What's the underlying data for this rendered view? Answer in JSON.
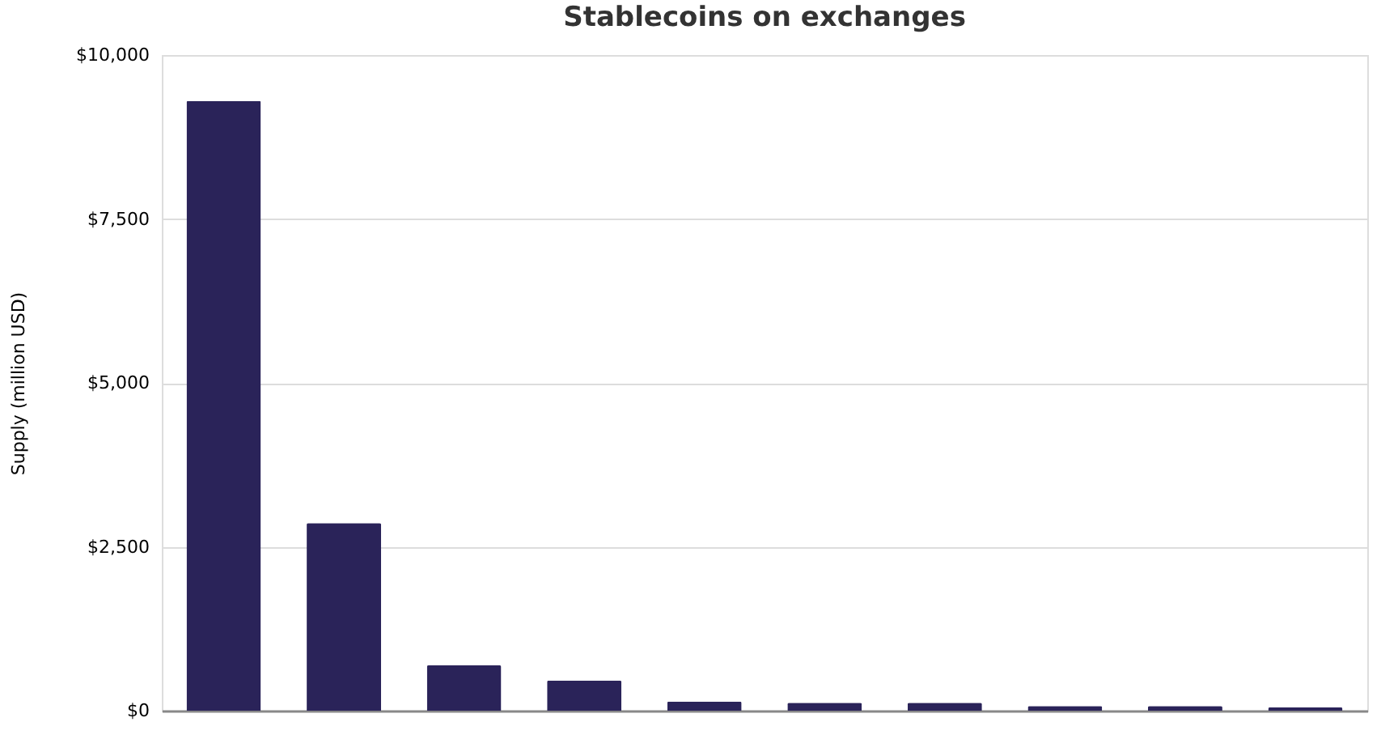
{
  "chart_data": {
    "type": "bar",
    "title": "Stablecoins on exchanges",
    "ylabel": "Supply (million USD)",
    "categories": [
      null,
      null,
      null,
      null,
      null,
      null,
      null,
      null,
      null,
      null
    ],
    "values": [
      9300,
      2860,
      690,
      460,
      140,
      120,
      120,
      70,
      70,
      50
    ],
    "color": "#2a2359",
    "ylim": [
      0,
      10000
    ],
    "yticks": [
      {
        "value": 0,
        "label": "$0"
      },
      {
        "value": 2500,
        "label": "$2,500"
      },
      {
        "value": 5000,
        "label": "$5,000"
      },
      {
        "value": 7500,
        "label": "$7,500"
      },
      {
        "value": 10000,
        "label": "$10,000"
      }
    ],
    "grid": "y",
    "tick_labels": "y"
  }
}
